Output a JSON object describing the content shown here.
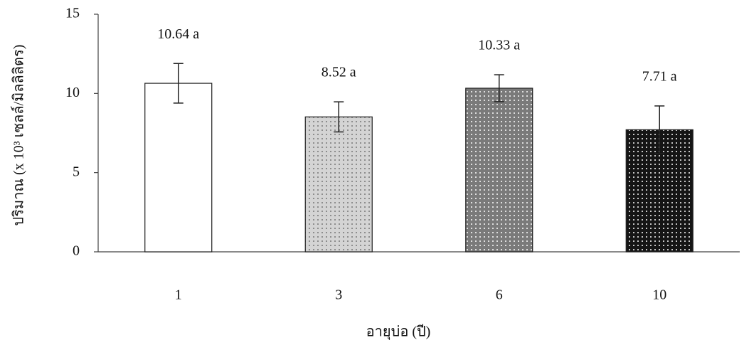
{
  "chart_data": {
    "type": "bar",
    "x_label": "อายุบ่อ (ปี)",
    "y_label": "ปริมาณ (x 10³ เซลล์/มิลลิลิตร)",
    "categories": [
      "1",
      "3",
      "6",
      "10"
    ],
    "values": [
      10.64,
      8.52,
      10.33,
      7.71
    ],
    "value_labels": [
      "10.64 a",
      "8.52 a",
      "10.33 a",
      "7.71 a"
    ],
    "errors": [
      1.25,
      0.95,
      0.85,
      1.5
    ],
    "colors": [
      "#ffffff",
      "#d4d4d4",
      "#7a7a7a",
      "#151515"
    ],
    "ylim": [
      0,
      15
    ],
    "yticks": [
      0,
      5,
      10,
      15
    ],
    "grid": false
  }
}
